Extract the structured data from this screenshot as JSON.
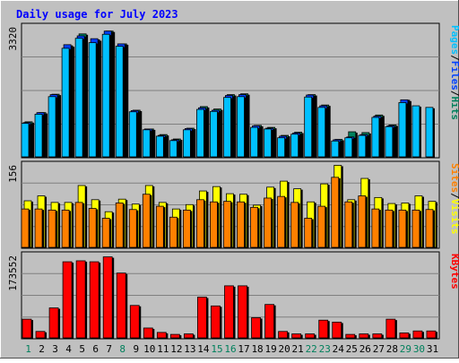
{
  "chart_data": {
    "type": "bar",
    "title": "Daily usage for July 2023",
    "categories": [
      "1",
      "2",
      "3",
      "4",
      "5",
      "6",
      "7",
      "8",
      "9",
      "10",
      "11",
      "12",
      "13",
      "14",
      "15",
      "16",
      "17",
      "18",
      "19",
      "20",
      "21",
      "22",
      "23",
      "24",
      "25",
      "26",
      "27",
      "28",
      "29",
      "30",
      "31"
    ],
    "weekend_days": [
      "1",
      "8",
      "15",
      "16",
      "22",
      "23",
      "29",
      "30"
    ],
    "grid": true,
    "panels": [
      {
        "id": "hits_files_pages",
        "ymax_label": "3320",
        "ylim": [
          0,
          3320
        ],
        "right_labels": [
          {
            "text": "Pages",
            "color": "#00c0ff"
          },
          {
            "text": "/",
            "color": "#000000"
          },
          {
            "text": "Files",
            "color": "#0040ff"
          },
          {
            "text": "/",
            "color": "#000000"
          },
          {
            "text": "Hits",
            "color": "#00805c"
          }
        ],
        "series": [
          {
            "name": "Hits",
            "color": "#00805c",
            "values": [
              900,
              1130,
              1590,
              2800,
              3100,
              2950,
              3170,
              2850,
              1190,
              720,
              580,
              470,
              740,
              1280,
              1220,
              1580,
              1600,
              810,
              760,
              560,
              640,
              1580,
              1320,
              460,
              650,
              630,
              1070,
              820,
              1440,
              0,
              0
            ]
          },
          {
            "name": "Files",
            "color": "#0040ff",
            "values": [
              880,
              1130,
              1580,
              2830,
              3050,
              2980,
              3170,
              2850,
              1180,
              720,
              560,
              450,
              730,
              1250,
              1190,
              1560,
              1580,
              800,
              740,
              540,
              620,
              1570,
              1300,
              450,
              520,
              580,
              1040,
              800,
              1450,
              0,
              0
            ]
          },
          {
            "name": "Pages",
            "color": "#00c0ff",
            "values": [
              860,
              1090,
              1530,
              2740,
              2990,
              2880,
              3090,
              2790,
              1150,
              700,
              540,
              430,
              700,
              1210,
              1160,
              1510,
              1530,
              760,
              720,
              500,
              590,
              1520,
              1260,
              420,
              500,
              560,
              1010,
              780,
              1380,
              1300,
              1260
            ]
          }
        ]
      },
      {
        "id": "visits_sites",
        "ymax_label": "156",
        "ylim": [
          0,
          156
        ],
        "right_labels": [
          {
            "text": "Sites",
            "color": "#ff8000"
          },
          {
            "text": "/",
            "color": "#000000"
          },
          {
            "text": "Visits",
            "color": "#ffff00"
          }
        ],
        "series": [
          {
            "name": "Visits",
            "color": "#ffff00",
            "values": [
              87,
              96,
              84,
              84,
              115,
              89,
              67,
              90,
              81,
              115,
              84,
              72,
              80,
              105,
              113,
              100,
              99,
              79,
              112,
              123,
              109,
              85,
              118,
              152,
              89,
              128,
              93,
              82,
              83,
              96,
              86
            ]
          },
          {
            "name": "Sites",
            "color": "#ff8000",
            "values": [
              72,
              72,
              70,
              70,
              84,
              73,
              55,
              83,
              71,
              99,
              77,
              57,
              70,
              89,
              85,
              86,
              85,
              75,
              92,
              95,
              84,
              55,
              77,
              130,
              85,
              96,
              72,
              70,
              70,
              70,
              71
            ]
          }
        ]
      },
      {
        "id": "kbytes",
        "ymax_label": "173552",
        "ylim": [
          0,
          173552
        ],
        "right_labels": [
          {
            "text": "KBytes",
            "color": "#ff0000"
          }
        ],
        "series": [
          {
            "name": "KBytes",
            "color": "#ff0000",
            "values": [
              40000,
              15000,
              63000,
              157000,
              159000,
              157000,
              167000,
              134000,
              68000,
              22000,
              13000,
              9000,
              10000,
              85000,
              67000,
              108000,
              108000,
              43000,
              70000,
              15000,
              10000,
              10000,
              38000,
              34000,
              9000,
              10000,
              10000,
              40000,
              12000,
              16000,
              16000
            ]
          }
        ]
      }
    ]
  },
  "colors": {
    "background": "#c0c0c0",
    "title": "#0000ff",
    "panel_fill": "#c0c0c0",
    "grid": "#808080",
    "axis_label": "#000000",
    "weekday_label": "#000000",
    "weekend_label": "#00805c"
  }
}
